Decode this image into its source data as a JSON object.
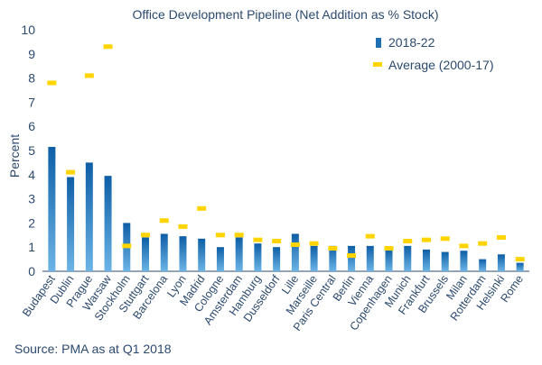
{
  "chart_data": {
    "type": "bar",
    "title": "Office Development Pipeline (Net Addition as % Stock)",
    "ylabel": "Percent",
    "xlabel": "",
    "ylim": [
      0,
      10
    ],
    "yticks": [
      "0",
      "1",
      "2",
      "3",
      "4",
      "5",
      "6",
      "7",
      "8",
      "9",
      "10"
    ],
    "grid": false,
    "legend_position": "top-right",
    "categories": [
      "Budapest",
      "Dublin",
      "Prague",
      "Warsaw",
      "Stockholm",
      "Stuttgart",
      "Barcelona",
      "Lyon",
      "Madrid",
      "Cologne",
      "Amsterdam",
      "Hamburg",
      "Dusseldorf",
      "Lille",
      "Marseille",
      "Paris Central",
      "Berlin",
      "Vienna",
      "Copenhagen",
      "Munich",
      "Frankfurt",
      "Brussels",
      "Milan",
      "Rotterdam",
      "Helsinki",
      "Rome"
    ],
    "series": [
      {
        "name": "2018-22",
        "kind": "bar",
        "color": "#1f6fb2",
        "values": [
          5.15,
          3.9,
          4.5,
          3.95,
          2.0,
          1.4,
          1.55,
          1.45,
          1.35,
          1.0,
          1.4,
          1.15,
          1.0,
          1.55,
          1.05,
          1.05,
          1.05,
          1.05,
          0.9,
          1.05,
          0.9,
          0.8,
          0.85,
          0.5,
          0.7,
          0.35
        ]
      },
      {
        "name": "Average (2000-17)",
        "kind": "marker",
        "color": "#ffd400",
        "values": [
          7.8,
          4.1,
          8.1,
          9.3,
          1.05,
          1.5,
          2.1,
          1.85,
          2.6,
          1.5,
          1.5,
          1.3,
          1.25,
          1.1,
          1.15,
          0.95,
          0.65,
          1.45,
          0.95,
          1.25,
          1.3,
          1.35,
          1.05,
          1.15,
          1.4,
          0.5
        ]
      }
    ]
  },
  "footer": {
    "source": "Source: PMA as at Q1 2018"
  }
}
